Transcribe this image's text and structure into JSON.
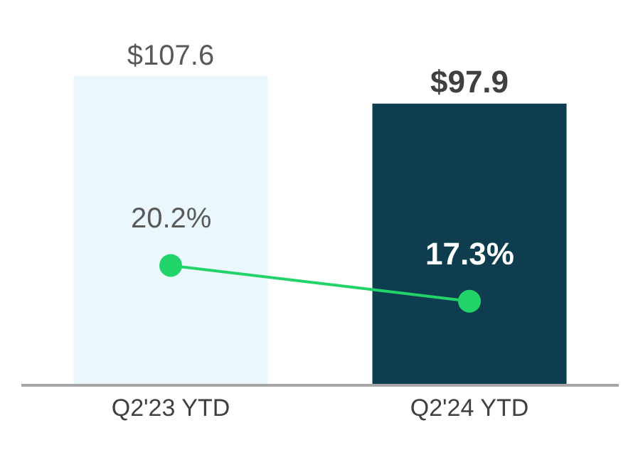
{
  "chart_data": {
    "type": "bar",
    "categories": [
      "Q2'23 YTD",
      "Q2'24 YTD"
    ],
    "series": [
      {
        "colors": [
          "#eaf8fd",
          "#0d3d4f"
        ],
        "values": [
          107.6,
          97.9
        ],
        "value_labels": [
          "$107.6",
          "$97.9"
        ]
      },
      {
        "type": "line",
        "axis": "y2",
        "color": "#22d36a",
        "marker": "circle",
        "values": [
          20.2,
          17.3
        ],
        "value_labels": [
          "20.2%",
          "17.3%"
        ]
      }
    ],
    "legend": false,
    "grid": false,
    "tick_labels": "x"
  }
}
